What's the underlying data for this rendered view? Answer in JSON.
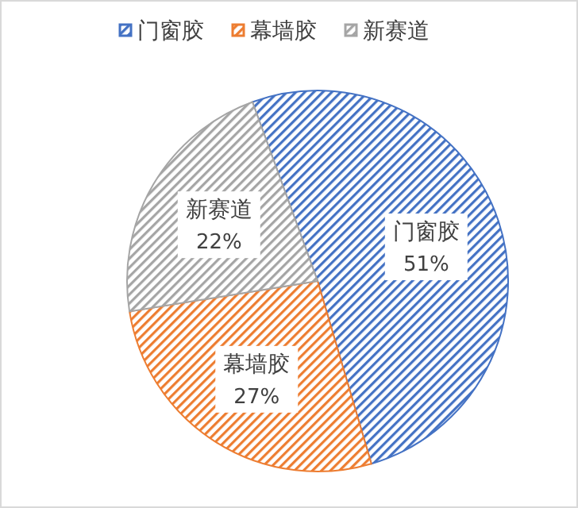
{
  "chart_data": {
    "type": "pie",
    "categories": [
      "门窗胶",
      "幕墙胶",
      "新赛道"
    ],
    "values": [
      51,
      27,
      22
    ],
    "value_labels": [
      "51%",
      "27%",
      "22%"
    ],
    "colors": [
      "#4472c4",
      "#ed7d31",
      "#a5a5a5"
    ],
    "legend": "top"
  }
}
